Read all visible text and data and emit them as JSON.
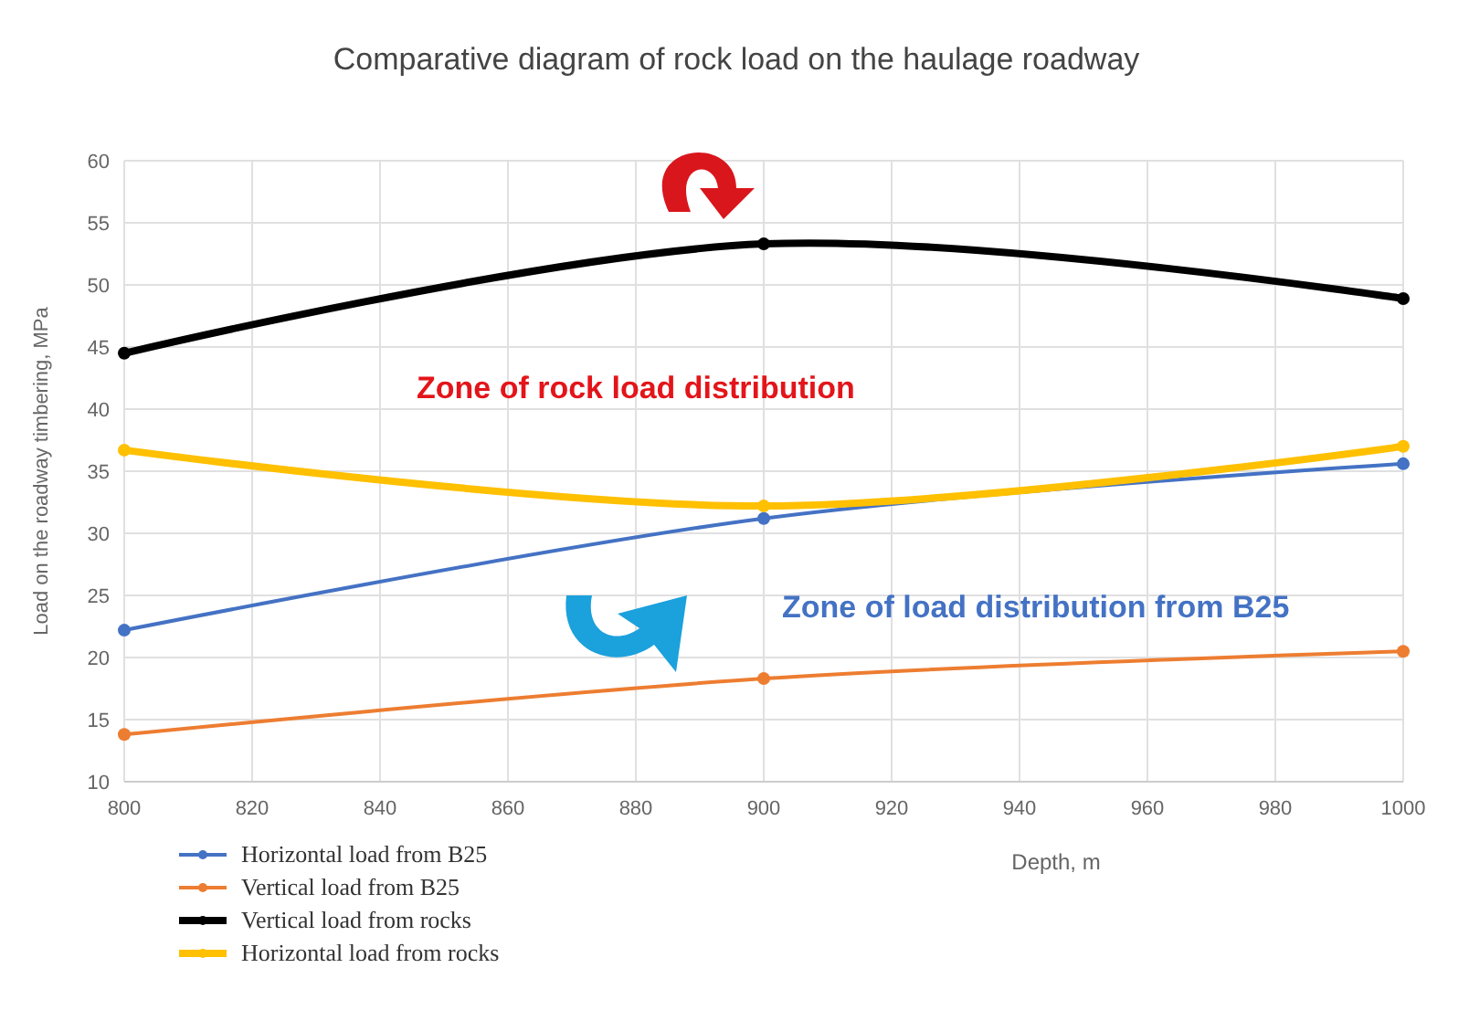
{
  "chart_data": {
    "type": "line",
    "title": "Comparative diagram of rock load on the haulage roadway",
    "xlabel": "Depth, m",
    "ylabel": "Load on the roadway timbering, MPa",
    "x": [
      800,
      900,
      1000
    ],
    "xlim": [
      800,
      1000
    ],
    "xticks": [
      800,
      820,
      840,
      860,
      880,
      900,
      920,
      940,
      960,
      980,
      1000
    ],
    "ylim": [
      10,
      60
    ],
    "yticks": [
      10,
      15,
      20,
      25,
      30,
      35,
      40,
      45,
      50,
      55,
      60
    ],
    "grid": true,
    "legend": "bottom left",
    "marker": "circle",
    "line_style": "solid",
    "series": [
      {
        "name": "Horizontal load from B25",
        "color": "#4472c4",
        "values": [
          22.2,
          31.2,
          35.6
        ]
      },
      {
        "name": "Vertical load from B25",
        "color": "#ed7d31",
        "values": [
          13.8,
          18.3,
          20.5
        ]
      },
      {
        "name": "Vertical load from rocks",
        "color": "#000000",
        "values": [
          44.5,
          53.3,
          48.9
        ]
      },
      {
        "name": "Horizontal load from rocks",
        "color": "#ffc000",
        "values": [
          36.7,
          32.2,
          37.0
        ]
      }
    ],
    "annotations": [
      "Zone of rock load distribution",
      "Zone of load distribution from B25"
    ]
  }
}
